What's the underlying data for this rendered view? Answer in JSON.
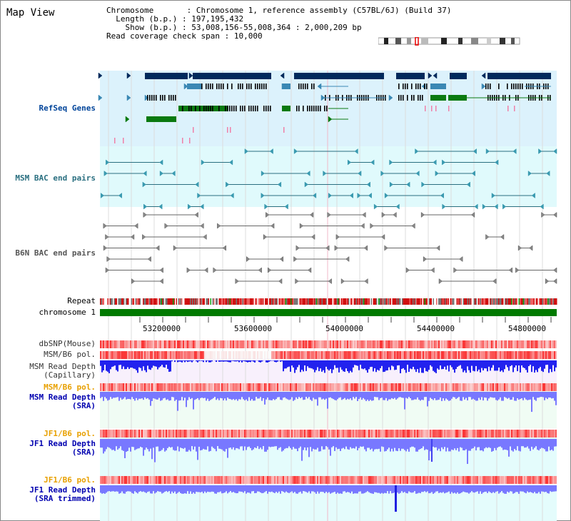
{
  "title": "Map View",
  "info": {
    "chromosome_key": "Chromosome",
    "chromosome_val": "Chromosome 1, reference assembly (C57BL/6J) (Build 37)",
    "length_key": "Length (b.p.)",
    "length_val": "197,195,432",
    "show_key": "Show (b.p.)",
    "show_val": "53,008,156-55,008,364 : 2,000,209 bp",
    "span_key": "Read coverage check span",
    "span_val": "10,000"
  },
  "tracks": {
    "refseq": "RefSeq Genes",
    "msm_bac": "MSM BAC end pairs",
    "b6n_bac": "B6N BAC end pairs",
    "repeat": "Repeat",
    "chromosome": "chromosome 1",
    "dbsnp": "dbSNP(Mouse)",
    "msm_pol1": "MSM/B6 pol.",
    "msm_depth_cap_1": "MSM Read Depth",
    "msm_depth_cap_2": "(Capillary)",
    "msm_pol2": "MSM/B6 pol.",
    "msm_depth_sra_1": "MSM Read Depth",
    "msm_depth_sra_2": "(SRA)",
    "jf1_pol1": "JF1/B6 pol.",
    "jf1_depth_sra_1": "JF1 Read Depth",
    "jf1_depth_sra_2": "(SRA)",
    "jf1_pol2": "JF1/B6 pol.",
    "jf1_depth_trim_1": "JF1 Read Depth",
    "jf1_depth_trim_2": "(SRA trimmed)"
  },
  "axis_ticks": [
    "53200000",
    "53600000",
    "54000000",
    "54400000",
    "54800000"
  ],
  "colors": {
    "refseq_bg": "#dcf2fc",
    "msm_bac_bg": "#e0fafc",
    "depth_bg_pink": "#f8f0fc",
    "depth_bg_green": "#f0fcf4",
    "depth_bg_cyan": "#e4fcfc",
    "gene_dark": "#002a5c",
    "gene_mid": "#3a88b4",
    "gene_green": "#0a7a10",
    "chrom_bar": "#007a00",
    "depth_bar": "#2222ee",
    "depth_bar_light": "#7878ff"
  }
}
